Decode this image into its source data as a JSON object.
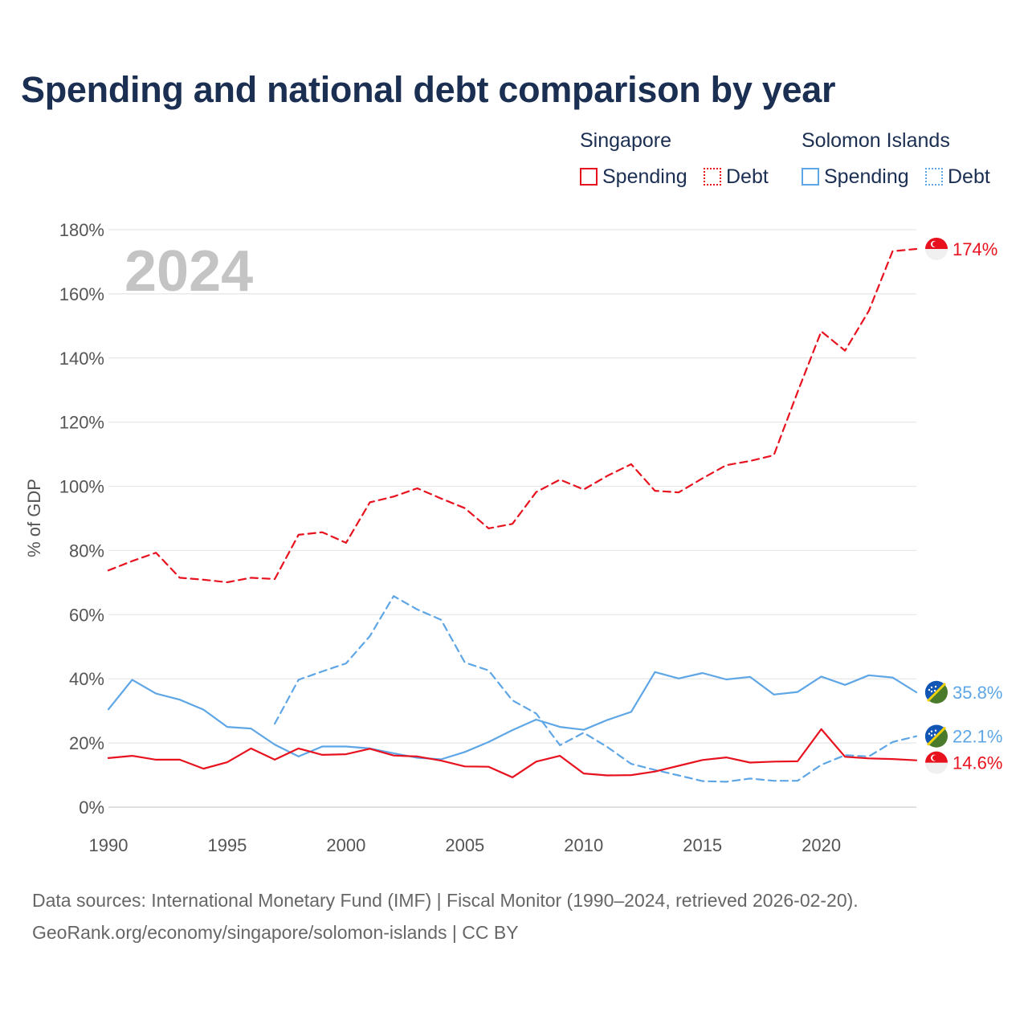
{
  "title": "Spending and national debt comparison by year",
  "legend": {
    "groups": [
      {
        "name": "Singapore",
        "items": [
          {
            "label": "Spending",
            "style": "solid",
            "color": "#e8121f"
          },
          {
            "label": "Debt",
            "style": "dotted",
            "color": "#e8121f"
          }
        ]
      },
      {
        "name": "Solomon Islands",
        "items": [
          {
            "label": "Spending",
            "style": "solid",
            "color": "#5ea6e6"
          },
          {
            "label": "Debt",
            "style": "dotted",
            "color": "#5ea6e6"
          }
        ]
      }
    ]
  },
  "footer": {
    "line1": "Data sources: International Monetary Fund (IMF) | Fiscal Monitor (1990–2024, retrieved 2026-02-20).",
    "line2": "GeoRank.org/economy/singapore/solomon-islands | CC BY"
  },
  "chart_data": {
    "type": "line",
    "title": "Spending and national debt comparison by year",
    "year_watermark": "2024",
    "ylabel": "% of GDP",
    "xlabel": "",
    "xlim": [
      1990,
      2024
    ],
    "ylim": [
      0,
      180
    ],
    "x_ticks": [
      1990,
      1995,
      2000,
      2005,
      2010,
      2015,
      2020
    ],
    "y_ticks": [
      0,
      20,
      40,
      60,
      80,
      100,
      120,
      140,
      160,
      180
    ],
    "y_tick_labels": [
      "0%",
      "20%",
      "40%",
      "60%",
      "80%",
      "100%",
      "120%",
      "140%",
      "160%",
      "180%"
    ],
    "grid": true,
    "legend_position": "top-right",
    "series": [
      {
        "name": "Singapore Debt",
        "country": "Singapore",
        "metric": "Debt",
        "color": "#e8121f",
        "dashed": true,
        "start_year": 1990,
        "values": [
          73.8,
          76.7,
          79.3,
          71.5,
          70.9,
          70.1,
          71.5,
          71.1,
          84.9,
          85.7,
          82.4,
          95.0,
          96.8,
          99.4,
          96.2,
          93.2,
          86.9,
          88.3,
          98.2,
          102.1,
          99.0,
          103.3,
          106.9,
          98.6,
          98.1,
          102.5,
          106.6,
          107.9,
          109.7,
          129.4,
          148.3,
          142.3,
          154.7,
          173.3,
          174.0
        ],
        "end_label": "174%"
      },
      {
        "name": "Solomon Islands Spending",
        "country": "Solomon Islands",
        "metric": "Spending",
        "color": "#5ea6e6",
        "dashed": false,
        "start_year": 1990,
        "values": [
          30.5,
          39.7,
          35.4,
          33.5,
          30.4,
          25.0,
          24.5,
          19.5,
          15.8,
          18.9,
          18.9,
          18.3,
          16.8,
          15.4,
          14.9,
          17.2,
          20.3,
          24.0,
          27.3,
          25.0,
          24.1,
          27.2,
          29.7,
          42.1,
          40.1,
          41.8,
          39.8,
          40.6,
          35.1,
          35.9,
          40.7,
          38.1,
          41.1,
          40.4,
          35.8
        ],
        "end_label": "35.8%"
      },
      {
        "name": "Solomon Islands Debt",
        "country": "Solomon Islands",
        "metric": "Debt",
        "color": "#5ea6e6",
        "dashed": true,
        "start_year": 1997,
        "values": [
          26.0,
          39.7,
          42.3,
          44.8,
          53.3,
          65.8,
          61.6,
          58.4,
          45.1,
          42.6,
          33.3,
          29.2,
          19.3,
          23.2,
          18.7,
          13.5,
          11.6,
          9.9,
          8.1,
          7.9,
          8.9,
          8.2,
          8.2,
          13.2,
          16.2,
          15.8,
          20.3,
          22.1
        ],
        "end_label": "22.1%"
      },
      {
        "name": "Singapore Spending",
        "country": "Singapore",
        "metric": "Spending",
        "color": "#e8121f",
        "dashed": false,
        "start_year": 1990,
        "values": [
          15.3,
          16.0,
          14.8,
          14.8,
          12.0,
          14.0,
          18.3,
          14.8,
          18.3,
          16.3,
          16.5,
          18.2,
          16.1,
          15.8,
          14.5,
          12.7,
          12.6,
          9.3,
          14.2,
          16.0,
          10.5,
          9.9,
          10.0,
          11.1,
          12.9,
          14.7,
          15.5,
          13.9,
          14.2,
          14.3,
          24.3,
          15.7,
          15.2,
          15.0,
          14.6
        ],
        "end_label": "14.6%"
      }
    ]
  }
}
